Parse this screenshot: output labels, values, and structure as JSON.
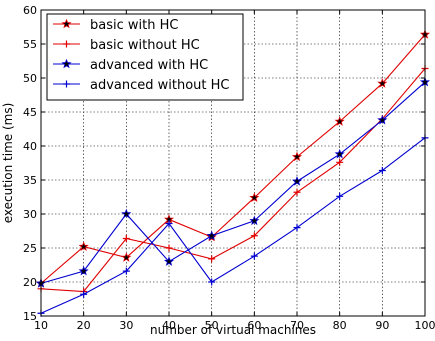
{
  "chart_data": {
    "type": "line",
    "title": "",
    "xlabel": "number of virtual machines",
    "ylabel": "execution time (ms)",
    "xlim": [
      10,
      100
    ],
    "ylim": [
      15,
      60
    ],
    "grid": true,
    "legend_position": "top-left",
    "x": [
      10,
      20,
      30,
      40,
      50,
      60,
      70,
      80,
      90,
      100
    ],
    "x_ticks": [
      "10",
      "20",
      "30",
      "40",
      "50",
      "60",
      "70",
      "80",
      "90",
      "100"
    ],
    "y_ticks": [
      "15",
      "20",
      "25",
      "30",
      "35",
      "40",
      "45",
      "50",
      "55",
      "60"
    ],
    "series": [
      {
        "name": "basic with HC",
        "color": "#e00000",
        "marker": "star",
        "values": [
          19.8,
          25.2,
          23.6,
          29.2,
          26.6,
          32.4,
          38.4,
          43.6,
          49.2,
          56.4
        ]
      },
      {
        "name": "basic without HC",
        "color": "#e00000",
        "marker": "plus",
        "values": [
          19.0,
          18.6,
          26.4,
          25.0,
          23.4,
          26.8,
          33.2,
          37.6,
          44.0,
          51.4
        ]
      },
      {
        "name": "advanced with HC",
        "color": "#0000d0",
        "marker": "star",
        "values": [
          19.8,
          21.6,
          30.0,
          23.0,
          26.8,
          29.0,
          34.8,
          38.8,
          43.8,
          49.4
        ]
      },
      {
        "name": "advanced without HC",
        "color": "#0000d0",
        "marker": "plus",
        "values": [
          15.4,
          18.2,
          21.6,
          28.6,
          20.0,
          23.8,
          28.0,
          32.6,
          36.4,
          41.2
        ]
      }
    ]
  }
}
